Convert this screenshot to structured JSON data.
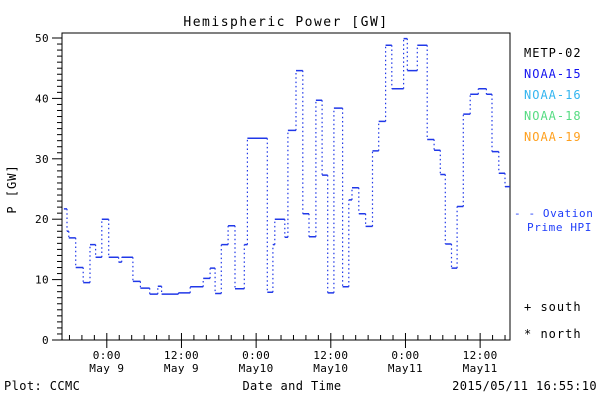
{
  "title": "Hemispheric Power [GW]",
  "footer": {
    "left": "Plot: CCMC",
    "timestamp": "2015/05/11 16:55:10"
  },
  "axes": {
    "ylabel": "P [GW]",
    "xlabel": "Date and Time",
    "ylim": [
      0,
      50
    ],
    "yticks": [
      0,
      10,
      20,
      30,
      40,
      50
    ],
    "y_minor_step": 1,
    "x_minor_step_hours": 2,
    "xlim_hours": [
      -7.2,
      64.8
    ],
    "xticks": [
      {
        "hour": 0,
        "time": "0:00",
        "date": "May 9"
      },
      {
        "hour": 12,
        "time": "12:00",
        "date": "May 9"
      },
      {
        "hour": 24,
        "time": "0:00",
        "date": "May10"
      },
      {
        "hour": 36,
        "time": "12:00",
        "date": "May10"
      },
      {
        "hour": 48,
        "time": "0:00",
        "date": "May11"
      },
      {
        "hour": 60,
        "time": "12:00",
        "date": "May11"
      }
    ]
  },
  "legend": {
    "satellites": [
      {
        "label": "METP-02",
        "color": "#000000"
      },
      {
        "label": "NOAA-15",
        "color": "#1414F0"
      },
      {
        "label": "NOAA-16",
        "color": "#33B5F0"
      },
      {
        "label": "NOAA-18",
        "color": "#55DC82"
      },
      {
        "label": "NOAA-19",
        "color": "#FFA01E"
      }
    ],
    "model": {
      "lines": [
        "- - Ovation",
        "Prime HPI"
      ],
      "color": "#1E3CFA"
    },
    "hemisphere_markers": [
      {
        "symbol": "+",
        "label": "south"
      },
      {
        "symbol": "*",
        "label": "north"
      }
    ]
  },
  "chart_data": {
    "type": "line",
    "style": "step-histogram, dotted vertical connectors",
    "series_name": "Ovation Prime HPI",
    "series_color": "#2038E8",
    "x_unit": "hours since 2015-05-09 00:00",
    "ylabel": "P [GW]",
    "xlabel": "Date and Time",
    "grid": false,
    "points": [
      [
        -6.9,
        21.7
      ],
      [
        -6.4,
        18.0
      ],
      [
        -6.1,
        16.9
      ],
      [
        -5.0,
        12.0
      ],
      [
        -3.8,
        9.5
      ],
      [
        -2.7,
        15.8
      ],
      [
        -1.8,
        13.7
      ],
      [
        -0.8,
        20.0
      ],
      [
        0.3,
        13.7
      ],
      [
        1.9,
        12.9
      ],
      [
        2.4,
        13.7
      ],
      [
        4.2,
        9.7
      ],
      [
        5.4,
        8.6
      ],
      [
        6.9,
        7.6
      ],
      [
        8.2,
        8.9
      ],
      [
        8.8,
        7.6
      ],
      [
        11.5,
        7.8
      ],
      [
        13.4,
        8.8
      ],
      [
        15.5,
        10.2
      ],
      [
        16.6,
        11.9
      ],
      [
        17.4,
        7.7
      ],
      [
        18.4,
        15.8
      ],
      [
        19.5,
        18.9
      ],
      [
        20.6,
        8.5
      ],
      [
        22.1,
        15.8
      ],
      [
        22.6,
        33.4
      ],
      [
        25.8,
        7.9
      ],
      [
        26.7,
        15.8
      ],
      [
        27.0,
        20.0
      ],
      [
        28.6,
        17.0
      ],
      [
        29.1,
        34.7
      ],
      [
        30.4,
        44.6
      ],
      [
        31.5,
        20.9
      ],
      [
        32.5,
        17.1
      ],
      [
        33.6,
        39.7
      ],
      [
        34.6,
        27.3
      ],
      [
        35.5,
        7.8
      ],
      [
        36.5,
        38.4
      ],
      [
        37.9,
        8.8
      ],
      [
        38.9,
        23.2
      ],
      [
        39.4,
        25.2
      ],
      [
        40.5,
        20.9
      ],
      [
        41.6,
        18.8
      ],
      [
        42.7,
        31.3
      ],
      [
        43.7,
        36.2
      ],
      [
        44.8,
        48.8
      ],
      [
        45.8,
        41.6
      ],
      [
        47.7,
        49.9
      ],
      [
        48.3,
        44.6
      ],
      [
        49.9,
        48.8
      ],
      [
        51.5,
        33.2
      ],
      [
        52.6,
        31.4
      ],
      [
        53.6,
        27.4
      ],
      [
        54.4,
        15.9
      ],
      [
        55.4,
        11.9
      ],
      [
        56.3,
        22.1
      ],
      [
        57.3,
        37.4
      ],
      [
        58.4,
        40.7
      ],
      [
        59.7,
        41.6
      ],
      [
        61.0,
        40.7
      ],
      [
        61.9,
        31.2
      ],
      [
        63.0,
        27.6
      ],
      [
        64.0,
        25.4
      ],
      [
        64.8,
        25.4
      ]
    ]
  }
}
